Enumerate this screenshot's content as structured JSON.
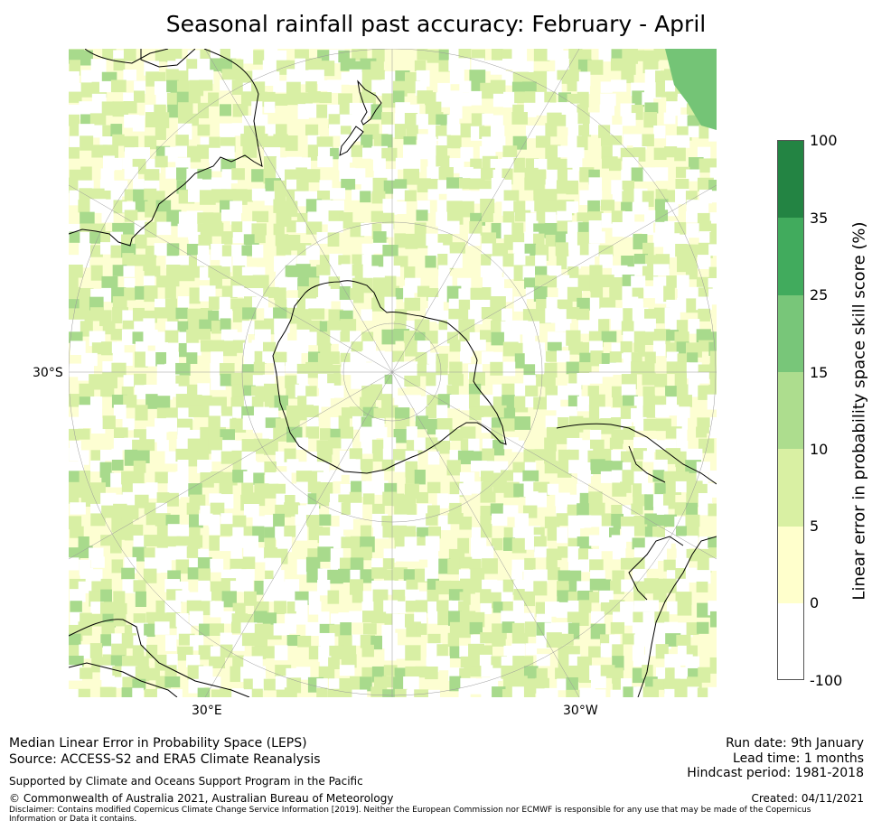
{
  "title": "Seasonal rainfall past accuracy: February - April",
  "map": {
    "lat_label": "30°S",
    "lon_labels": [
      "30°E",
      "30°W"
    ],
    "colors": {
      "ocean": "#fdfed2",
      "low": "#d8efa4",
      "mid": "#a8da8c",
      "high": "#74c476",
      "land_outline": "#000000",
      "gridline": "#999999"
    }
  },
  "colorbar": {
    "label": "Linear error in probability space skill score (%)",
    "ticks": [
      "100",
      "35",
      "25",
      "15",
      "10",
      "5",
      "0",
      "-100"
    ],
    "colors": [
      "#238443",
      "#41ab5d",
      "#78c679",
      "#addd8e",
      "#d9f0a3",
      "#ffffcc",
      "#ffffff"
    ]
  },
  "footer": {
    "line1": "Median Linear Error in Probability Space (LEPS)",
    "line2": "Source: ACCESS-S2 and ERA5 Climate Reanalysis",
    "support": "Supported by Climate and Oceans Support Program in the Pacific",
    "copyright": "© Commonwealth of Australia 2021, Australian Bureau of Meteorology",
    "disclaimer": "Disclaimer: Contains modified Copernicus Climate Change Service Information [2019]. Neither the European Commission nor ECMWF is responsible for any use that may be made of the Copernicus Information or Data it contains.",
    "run_date": "Run date: 9th January",
    "lead_time": "Lead time: 1 months",
    "hindcast": "Hindcast period: 1981-2018",
    "created": "Created: 04/11/2021"
  }
}
